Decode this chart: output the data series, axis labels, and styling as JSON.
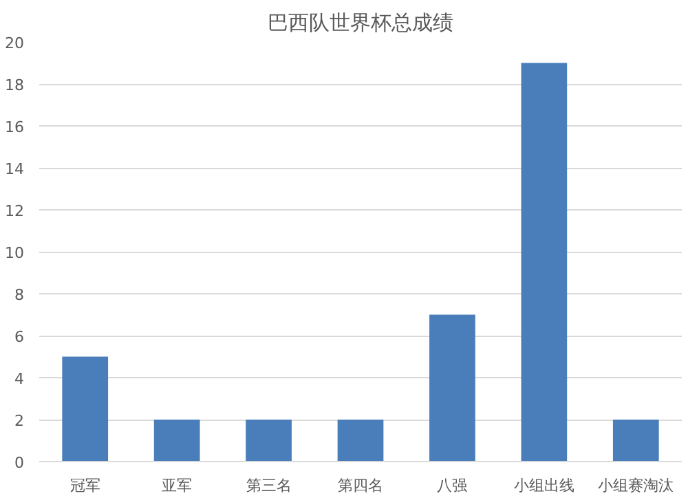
{
  "chart_data": {
    "type": "bar",
    "title": "巴西队世界杯总成绩",
    "categories": [
      "冠军",
      "亚军",
      "第三名",
      "第四名",
      "八强",
      "小组出线",
      "小组赛淘汰"
    ],
    "values": [
      5,
      2,
      2,
      2,
      7,
      19,
      2
    ],
    "color": "#4a7ebb",
    "ylim": [
      0,
      20
    ],
    "yticks": [
      0,
      2,
      4,
      6,
      8,
      10,
      12,
      14,
      16,
      18,
      20
    ],
    "grid": "y"
  }
}
